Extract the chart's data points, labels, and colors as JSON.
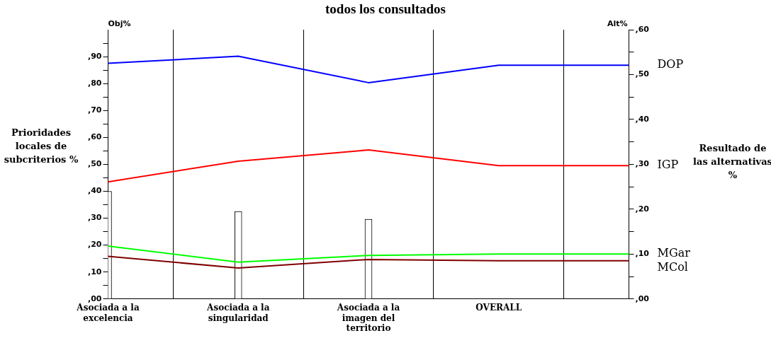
{
  "chart_data": {
    "type": "line",
    "title": "todos los consultados",
    "ylabel": "Prioridades locales de subcriterios %",
    "y2label": "Resultado de las alternativas %",
    "annotations": [
      "Obj%",
      "Alt%"
    ],
    "categories": [
      "Asociada a la excelencia",
      "Asociada a la singularidad",
      "Asociada a la imagen del territorio",
      "OVERALL",
      null
    ],
    "series": [
      {
        "type": "bar",
        "color": "#ffffff",
        "values": [
          40,
          32.5,
          29.6,
          null,
          null
        ]
      },
      {
        "name": "DOP",
        "color": "#0000ff",
        "axis": "y2",
        "values": [
          52.5,
          54.1,
          48.2,
          52.1,
          52.1
        ]
      },
      {
        "name": "IGP",
        "color": "#ff0000",
        "axis": "y2",
        "values": [
          26.1,
          30.7,
          33.2,
          29.7,
          29.7
        ]
      },
      {
        "name": "MGar",
        "color": "#00ff00",
        "axis": "y2",
        "values": [
          11.8,
          8.2,
          9.7,
          10.0,
          10.0
        ]
      },
      {
        "name": "MCol",
        "color": "#800000",
        "axis": "y2",
        "values": [
          9.5,
          6.9,
          8.8,
          8.5,
          8.5
        ]
      }
    ],
    "ylim": [
      0,
      100
    ],
    "yticks": [
      {
        "value": 0,
        "label": ",00"
      },
      {
        "value": 5,
        "label": null
      },
      {
        "value": 10,
        "label": ",10"
      },
      {
        "value": 15,
        "label": null
      },
      {
        "value": 20,
        "label": ",20"
      },
      {
        "value": 25,
        "label": null
      },
      {
        "value": 30,
        "label": ",30"
      },
      {
        "value": 35,
        "label": null
      },
      {
        "value": 40,
        "label": ",40"
      },
      {
        "value": 45,
        "label": null
      },
      {
        "value": 50,
        "label": ",50"
      },
      {
        "value": 55,
        "label": null
      },
      {
        "value": 60,
        "label": ",60"
      },
      {
        "value": 65,
        "label": null
      },
      {
        "value": 70,
        "label": ",70"
      },
      {
        "value": 75,
        "label": null
      },
      {
        "value": 80,
        "label": ",80"
      },
      {
        "value": 85,
        "label": null
      },
      {
        "value": 90,
        "label": ",90"
      },
      {
        "value": 95,
        "label": null
      }
    ],
    "y2lim": [
      0,
      60
    ],
    "y2ticks": [
      {
        "value": 0,
        "label": ",00"
      },
      {
        "value": 5,
        "label": null
      },
      {
        "value": 10,
        "label": ",10"
      },
      {
        "value": 15,
        "label": null
      },
      {
        "value": 20,
        "label": ",20"
      },
      {
        "value": 25,
        "label": null
      },
      {
        "value": 30,
        "label": ",30"
      },
      {
        "value": 35,
        "label": null
      },
      {
        "value": 40,
        "label": ",40"
      },
      {
        "value": 45,
        "label": null
      },
      {
        "value": 50,
        "label": ",50"
      },
      {
        "value": 55,
        "label": null
      },
      {
        "value": 60,
        "label": ",60"
      }
    ],
    "grid": "x",
    "legend": false,
    "marker": "none",
    "line_style": "solid"
  }
}
